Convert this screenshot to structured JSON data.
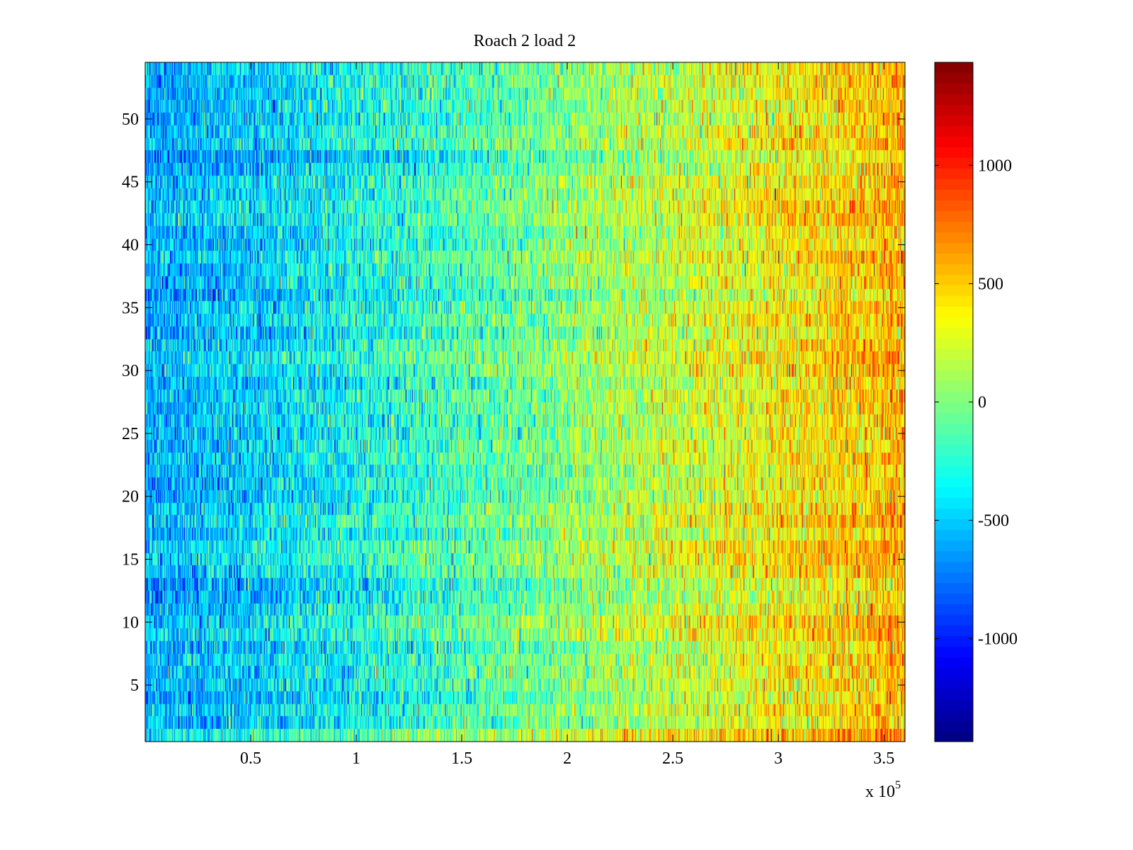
{
  "chart_data": {
    "type": "heatmap",
    "title": "Roach 2 load 2",
    "xlabel": "",
    "ylabel": "",
    "x_exponent_label": "x 10",
    "x_exponent_power": "5",
    "xlim": [
      0,
      360000
    ],
    "ylim": [
      0.5,
      54.5
    ],
    "x_ticks": [
      50000,
      100000,
      150000,
      200000,
      250000,
      300000,
      350000
    ],
    "x_tick_labels": [
      "0.5",
      "1",
      "1.5",
      "2",
      "2.5",
      "3",
      "3.5"
    ],
    "y_ticks": [
      5,
      10,
      15,
      20,
      25,
      30,
      35,
      40,
      45,
      50
    ],
    "y_tick_labels": [
      "5",
      "10",
      "15",
      "20",
      "25",
      "30",
      "35",
      "40",
      "45",
      "50"
    ],
    "rows": 54,
    "colormap": "jet",
    "clim": [
      -1435,
      1435
    ],
    "colorbar": {
      "ticks": [
        -1000,
        -500,
        0,
        500,
        1000
      ],
      "tick_labels": [
        "-1000",
        "-500",
        "0",
        "500",
        "1000"
      ],
      "placement": "right"
    },
    "trend": {
      "description_x": [
        0,
        50000,
        100000,
        150000,
        200000,
        250000,
        300000,
        360000
      ],
      "mean_value": [
        -580,
        -480,
        -320,
        -170,
        20,
        200,
        360,
        560
      ],
      "noise_std": 260
    },
    "grid": false
  }
}
